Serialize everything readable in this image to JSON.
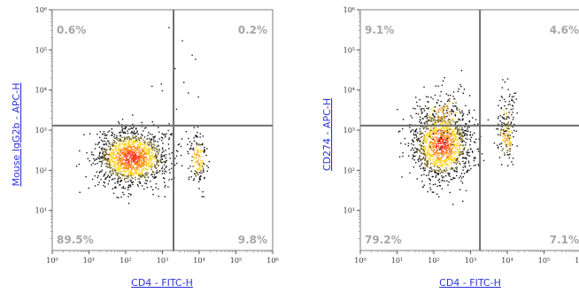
{
  "chart_data": [
    {
      "type": "scatter",
      "xlabel": "CD4 - FITC-H",
      "ylabel": "Mouse IgG2b - APC-H",
      "xscale": "log",
      "yscale": "log",
      "xlim": [
        1,
        1000000
      ],
      "ylim": [
        1,
        1000000
      ],
      "x_tick_labels": [
        "10⁰",
        "10¹",
        "10²",
        "10³",
        "10⁴",
        "10⁵",
        "10⁶"
      ],
      "y_tick_labels": [
        "10¹",
        "10²",
        "10³",
        "10⁴",
        "10⁵",
        "10⁶"
      ],
      "gate": {
        "x": 2000,
        "y": 1300
      },
      "quadrants": {
        "upper_left": "0.6%",
        "upper_right": "0.2%",
        "lower_left": "89.5%",
        "lower_right": "9.8%"
      },
      "populations": [
        {
          "center": [
            140,
            210
          ],
          "spread": [
            0.5,
            0.35
          ],
          "share": 0.895
        },
        {
          "center": [
            9000,
            200
          ],
          "spread": [
            0.12,
            0.3
          ],
          "share": 0.098
        },
        {
          "center": [
            800,
            4000
          ],
          "spread": [
            0.5,
            0.8
          ],
          "share": 0.006
        },
        {
          "center": [
            8000,
            20000
          ],
          "spread": [
            0.3,
            0.7
          ],
          "share": 0.002
        }
      ]
    },
    {
      "type": "scatter",
      "xlabel": "CD4 - FITC-H",
      "ylabel": "CD274 - APC-H",
      "xscale": "log",
      "yscale": "log",
      "xlim": [
        1,
        1000000
      ],
      "ylim": [
        1,
        1000000
      ],
      "x_tick_labels": [
        "10⁰",
        "10¹",
        "10²",
        "10³",
        "10⁴",
        "10⁵",
        "10⁶"
      ],
      "y_tick_labels": [
        "10¹",
        "10²",
        "10³",
        "10⁴",
        "10⁵",
        "10⁶"
      ],
      "gate": {
        "x": 1800,
        "y": 1300
      },
      "quadrants": {
        "upper_left": "9.1%",
        "upper_right": "4.6%",
        "lower_left": "79.2%",
        "lower_right": "7.1%"
      },
      "populations": [
        {
          "center": [
            160,
            450
          ],
          "spread": [
            0.4,
            0.45
          ],
          "share": 0.792
        },
        {
          "center": [
            170,
            2500
          ],
          "spread": [
            0.35,
            0.35
          ],
          "share": 0.091
        },
        {
          "center": [
            9000,
            700
          ],
          "spread": [
            0.12,
            0.3
          ],
          "share": 0.071
        },
        {
          "center": [
            9000,
            3000
          ],
          "spread": [
            0.14,
            0.35
          ],
          "share": 0.046
        }
      ]
    }
  ]
}
